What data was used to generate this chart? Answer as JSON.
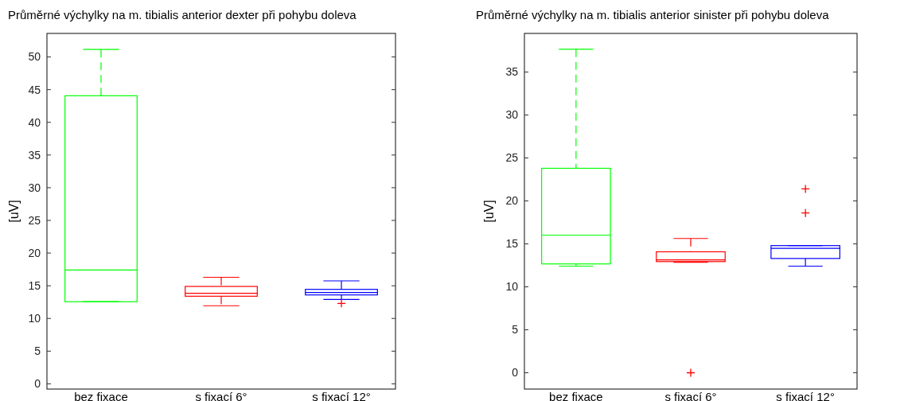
{
  "chart_data": [
    {
      "type": "box",
      "title": "Průměrné výchylky na m. tibialis anterior dexter při pohybu doleva",
      "ylabel": "[uV]",
      "categories": [
        "bez fixace",
        "s fixací 6°",
        "s fixací 12°"
      ],
      "ylim": [
        -0.8,
        53.6
      ],
      "yticks": [
        0,
        5,
        10,
        15,
        20,
        25,
        30,
        35,
        40,
        45,
        50
      ],
      "grid": false,
      "line_style": "dashed",
      "series": [
        {
          "type": "box",
          "colors": [
            "#00ff00",
            "#ff0000",
            "#0000ff"
          ],
          "boxes": [
            {
              "low": 12.56,
              "q1": 12.56,
              "median": 17.4,
              "q3": 44.07,
              "high": 51.15
            },
            {
              "low": 11.95,
              "q1": 13.4,
              "median": 13.85,
              "q3": 14.9,
              "high": 16.3
            },
            {
              "low": 12.9,
              "q1": 13.6,
              "median": 13.97,
              "q3": 14.45,
              "high": 15.75
            }
          ]
        },
        {
          "type": "scatter",
          "marker": "cross",
          "color": "#ff0000",
          "x": [
            "s fixací 12°"
          ],
          "values": [
            12.3
          ]
        }
      ]
    },
    {
      "type": "box",
      "title": "Průměrné výchylky na m. tibialis anterior sinister při pohybu doleva",
      "ylabel": "[uV]",
      "categories": [
        "bez fixace",
        "s fixací 6°",
        "s fixací 12°"
      ],
      "ylim": [
        -1.9,
        39.5
      ],
      "yticks": [
        0,
        5,
        10,
        15,
        20,
        25,
        30,
        35
      ],
      "grid": false,
      "line_style": "dashed",
      "series": [
        {
          "type": "box",
          "colors": [
            "#00ff00",
            "#ff0000",
            "#0000ff"
          ],
          "boxes": [
            {
              "low": 12.41,
              "q1": 12.67,
              "median": 16.02,
              "q3": 23.8,
              "high": 37.66
            },
            {
              "low": 12.87,
              "q1": 12.94,
              "median": 13.13,
              "q3": 14.08,
              "high": 15.63
            },
            {
              "low": 12.41,
              "q1": 13.3,
              "median": 14.48,
              "q3": 14.8,
              "high": 14.8
            }
          ]
        },
        {
          "type": "scatter",
          "marker": "cross",
          "color": "#ff0000",
          "x": [
            "s fixací 6°",
            "s fixací 12°",
            "s fixací 12°"
          ],
          "values": [
            0,
            21.4,
            18.6
          ]
        }
      ]
    }
  ]
}
